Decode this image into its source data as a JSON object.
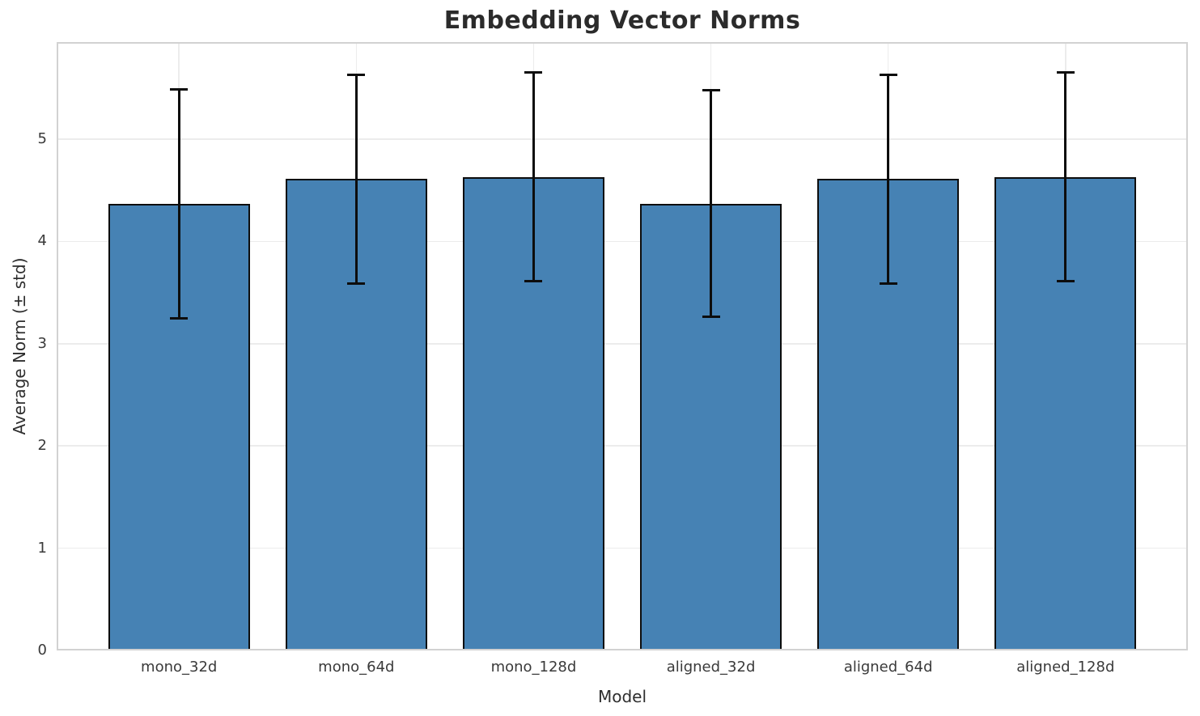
{
  "chart_data": {
    "type": "bar",
    "title": "Embedding Vector Norms",
    "xlabel": "Model",
    "ylabel": "Average Norm (± std)",
    "categories": [
      "mono_32d",
      "mono_64d",
      "mono_128d",
      "aligned_32d",
      "aligned_64d",
      "aligned_128d"
    ],
    "series": [
      {
        "name": "Average Norm",
        "values": [
          4.37,
          4.61,
          4.63,
          4.37,
          4.61,
          4.63
        ]
      }
    ],
    "values": [
      4.37,
      4.61,
      4.63,
      4.37,
      4.61,
      4.63
    ],
    "stds": [
      1.12,
      1.02,
      1.02,
      1.11,
      1.02,
      1.02
    ],
    "error_bar_tops": [
      5.49,
      5.63,
      5.65,
      5.48,
      5.63,
      5.65
    ],
    "error_bar_bottoms": [
      3.25,
      3.59,
      3.61,
      3.26,
      3.59,
      3.61
    ],
    "yticks": [
      0,
      1,
      2,
      3,
      4,
      5
    ],
    "ylim": [
      0,
      5.95
    ],
    "xlim_units": [
      -0.69,
      5.69
    ],
    "bar_width_frac": 0.8,
    "grid": true,
    "legend": "none",
    "colors": {
      "bar_fill": "#4682b4",
      "bar_edge": "#0d0d0d",
      "error": "#0d0d0d",
      "grid": "#ececec",
      "spine": "#d2d2d2",
      "title_text": "#2b2b2b",
      "tick_text": "#3a3a3a",
      "label_text": "#2e2e2e",
      "background": "#ffffff"
    }
  }
}
